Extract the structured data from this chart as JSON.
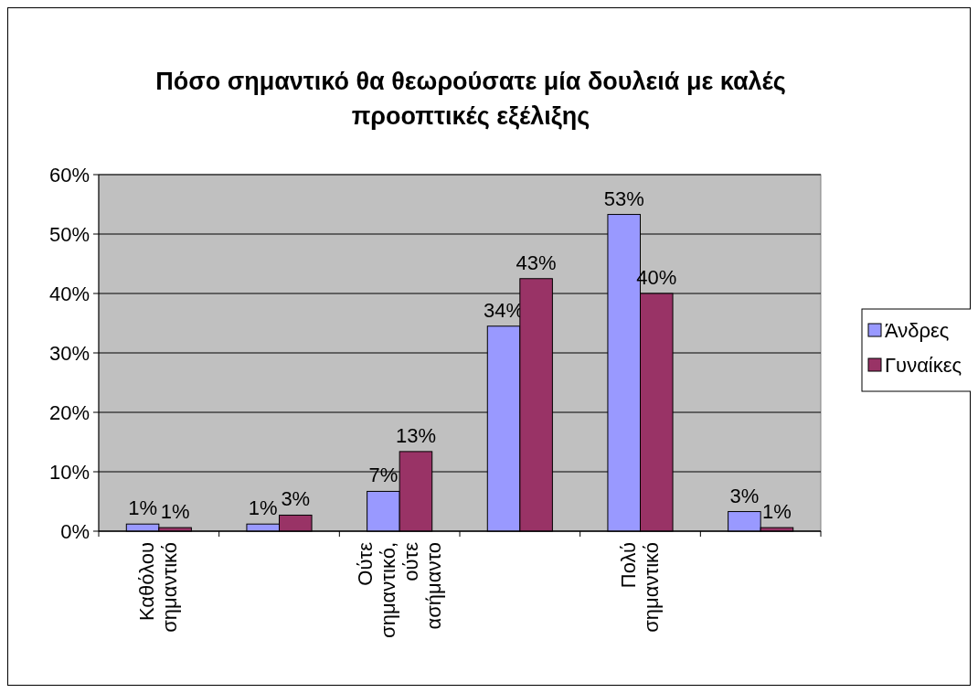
{
  "chart_data": {
    "type": "bar",
    "title": "Πόσο σημαντικό θα θεωρούσατε μία δουλειά με καλές προοπτικές εξέλιξης",
    "categories": [
      "Καθόλου σημαντικό",
      null,
      "Ούτε σημαντικό, ούτε ασήμαντο",
      null,
      "Πολύ σημαντικό",
      null
    ],
    "series": [
      {
        "name": "Άνδρες",
        "color": "#9999ff",
        "values": [
          1.2,
          1.2,
          6.7,
          34.5,
          53.3,
          3.3
        ],
        "value_labels": [
          "1%",
          "1%",
          "7%",
          "34%",
          "53%",
          "3%"
        ]
      },
      {
        "name": "Γυναίκες",
        "color": "#993366",
        "values": [
          0.6,
          2.7,
          13.4,
          42.5,
          40,
          0.6
        ],
        "value_labels": [
          "1%",
          "3%",
          "13%",
          "43%",
          "40%",
          "1%"
        ]
      }
    ],
    "ylim": [
      0,
      60
    ],
    "yticks": [
      {
        "value": 0,
        "label": "0%"
      },
      {
        "value": 10,
        "label": "10%"
      },
      {
        "value": 20,
        "label": "20%"
      },
      {
        "value": 30,
        "label": "30%"
      },
      {
        "value": 40,
        "label": "40%"
      },
      {
        "value": 50,
        "label": "50%"
      },
      {
        "value": 60,
        "label": "60%"
      }
    ],
    "grid": "y",
    "legend": "right"
  }
}
